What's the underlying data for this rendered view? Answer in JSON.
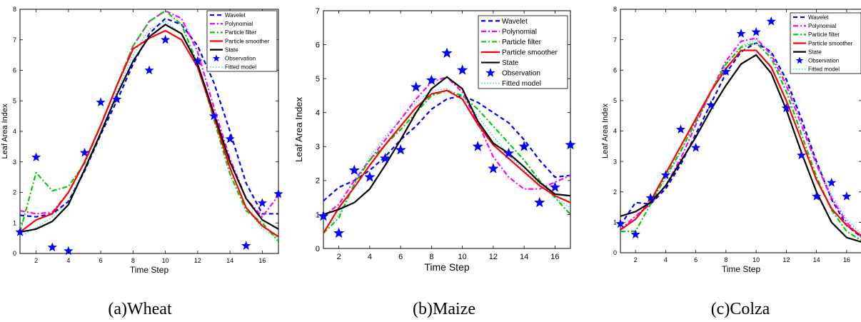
{
  "panels": [
    {
      "caption": "(a)Wheat",
      "chart_data": {
        "type": "line",
        "xlabel": "Time Step",
        "ylabel": "Leaf Area Index",
        "xlim": [
          1,
          17
        ],
        "ylim": [
          0,
          8
        ],
        "xticks": [
          2,
          4,
          6,
          8,
          10,
          12,
          14,
          16
        ],
        "yticks": [
          0,
          1,
          2,
          3,
          4,
          5,
          6,
          7,
          8
        ],
        "x": [
          1,
          2,
          3,
          4,
          5,
          6,
          7,
          8,
          9,
          10,
          11,
          12,
          13,
          14,
          15,
          16,
          17
        ],
        "legend_position": "top-right",
        "grid": false,
        "series": [
          {
            "name": "Wavelet",
            "style": "dashed",
            "color": "#0000ff",
            "values": [
              1.25,
              1.2,
              1.3,
              1.7,
              2.7,
              3.9,
              5.0,
              6.2,
              7.2,
              7.7,
              7.5,
              6.8,
              5.6,
              4.0,
              2.3,
              1.3,
              1.3
            ]
          },
          {
            "name": "Polynomial",
            "style": "dashdot",
            "color": "#ff00ff",
            "values": [
              1.4,
              1.3,
              1.35,
              2.0,
              3.0,
              4.2,
              5.5,
              6.8,
              7.6,
              7.95,
              7.7,
              6.6,
              4.8,
              3.1,
              1.8,
              1.2,
              1.9
            ]
          },
          {
            "name": "Particle filter",
            "style": "dashdot",
            "color": "#00cc00",
            "values": [
              0.7,
              2.65,
              2.05,
              2.2,
              2.95,
              4.2,
              5.5,
              6.8,
              7.6,
              7.95,
              7.5,
              6.2,
              4.4,
              2.6,
              1.4,
              1.0,
              0.4
            ]
          },
          {
            "name": "Particle smoother",
            "style": "solid",
            "color": "#ff0000",
            "values": [
              0.7,
              1.1,
              1.3,
              2.0,
              3.0,
              4.2,
              5.5,
              6.7,
              7.05,
              7.3,
              7.0,
              6.1,
              4.5,
              2.8,
              1.5,
              0.9,
              0.55
            ]
          },
          {
            "name": "State",
            "style": "solid",
            "color": "#000000",
            "values": [
              0.7,
              0.8,
              1.05,
              1.6,
              2.75,
              3.95,
              5.2,
              6.3,
              7.1,
              7.5,
              7.2,
              6.2,
              4.6,
              3.0,
              1.8,
              1.1,
              0.8
            ]
          },
          {
            "name": "Observation",
            "style": "marker",
            "color": "#0000ff",
            "values": [
              0.7,
              3.15,
              0.2,
              0.08,
              3.3,
              4.95,
              5.05,
              null,
              6.0,
              7.0,
              null,
              6.3,
              4.5,
              3.75,
              0.25,
              1.65,
              1.95
            ]
          },
          {
            "name": "Fitted model",
            "style": "dotted",
            "color": "#00cccc",
            "values": [
              0.55,
              0.85,
              1.2,
              1.75,
              2.8,
              4.0,
              5.3,
              6.5,
              7.35,
              7.6,
              7.2,
              6.1,
              4.5,
              2.8,
              1.5,
              0.8,
              0.5
            ]
          }
        ]
      }
    },
    {
      "caption": "(b)Maize",
      "chart_data": {
        "type": "line",
        "xlabel": "Time Step",
        "ylabel": "Leaf Area Index",
        "xlim": [
          1,
          17
        ],
        "ylim": [
          0,
          7
        ],
        "xticks": [
          2,
          4,
          6,
          8,
          10,
          12,
          14,
          16
        ],
        "yticks": [
          0,
          1,
          2,
          3,
          4,
          5,
          6,
          7
        ],
        "x": [
          1,
          2,
          3,
          4,
          5,
          6,
          7,
          8,
          9,
          10,
          11,
          12,
          13,
          14,
          15,
          16,
          17
        ],
        "legend_position": "top-right",
        "grid": false,
        "series": [
          {
            "name": "Wavelet",
            "style": "dashed",
            "color": "#0000ff",
            "values": [
              1.4,
              1.8,
              2.0,
              2.3,
              2.7,
              3.2,
              3.6,
              4.1,
              4.4,
              4.5,
              4.3,
              4.0,
              3.7,
              3.2,
              2.6,
              2.1,
              2.15
            ]
          },
          {
            "name": "Polynomial",
            "style": "dashdot",
            "color": "#ff00ff",
            "values": [
              0.95,
              1.3,
              2.0,
              2.6,
              3.2,
              3.8,
              4.4,
              4.9,
              5.05,
              4.6,
              3.7,
              2.7,
              2.1,
              1.75,
              1.75,
              1.95,
              2.15
            ]
          },
          {
            "name": "Particle filter",
            "style": "dashdot",
            "color": "#00cc00",
            "values": [
              0.45,
              0.9,
              1.9,
              2.6,
              3.05,
              3.5,
              4.0,
              4.5,
              4.65,
              4.5,
              4.1,
              3.6,
              3.1,
              2.6,
              2.0,
              1.5,
              1.0
            ]
          },
          {
            "name": "Particle smoother",
            "style": "solid",
            "color": "#ff0000",
            "values": [
              0.45,
              1.2,
              1.8,
              2.45,
              3.05,
              3.6,
              4.15,
              4.55,
              4.65,
              4.4,
              3.65,
              3.05,
              2.65,
              2.25,
              1.85,
              1.55,
              1.35
            ]
          },
          {
            "name": "State",
            "style": "solid",
            "color": "#000000",
            "values": [
              1.0,
              1.15,
              1.35,
              1.75,
              2.45,
              3.2,
              4.0,
              4.7,
              5.05,
              4.7,
              3.75,
              3.1,
              2.8,
              2.4,
              1.95,
              1.6,
              1.55
            ]
          },
          {
            "name": "Observation",
            "style": "marker",
            "color": "#0000ff",
            "values": [
              0.95,
              0.45,
              2.3,
              2.1,
              2.65,
              2.9,
              4.75,
              4.95,
              5.75,
              5.25,
              3.0,
              2.35,
              2.8,
              3.0,
              1.35,
              1.8,
              3.05
            ]
          },
          {
            "name": "Fitted model",
            "style": "dotted",
            "color": "#00cccc",
            "values": [
              0.5,
              1.0,
              1.9,
              2.7,
              3.3,
              3.8,
              4.3,
              4.65,
              4.7,
              4.45,
              3.9,
              3.3,
              2.75,
              2.3,
              1.9,
              1.5,
              1.2
            ]
          }
        ]
      }
    },
    {
      "caption": "(c)Colza",
      "chart_data": {
        "type": "line",
        "xlabel": "Time Step",
        "ylabel": "Leaf Area Index",
        "xlim": [
          1,
          17
        ],
        "ylim": [
          0,
          8
        ],
        "xticks": [
          2,
          4,
          6,
          8,
          10,
          12,
          14,
          16
        ],
        "yticks": [
          0,
          1,
          2,
          3,
          4,
          5,
          6,
          7,
          8
        ],
        "x": [
          1,
          2,
          3,
          4,
          5,
          6,
          7,
          8,
          9,
          10,
          11,
          12,
          13,
          14,
          15,
          16,
          17
        ],
        "legend_position": "top-right",
        "grid": false,
        "series": [
          {
            "name": "Wavelet",
            "style": "dashed",
            "color": "#0000ff",
            "values": [
              0.9,
              1.65,
              1.6,
              2.1,
              2.9,
              3.9,
              4.9,
              5.9,
              6.6,
              6.9,
              6.6,
              5.7,
              4.4,
              3.0,
              1.75,
              0.9,
              0.5
            ]
          },
          {
            "name": "Polynomial",
            "style": "dashdot",
            "color": "#ff00ff",
            "values": [
              0.75,
              1.2,
              1.6,
              2.2,
              3.1,
              4.2,
              5.3,
              6.3,
              6.95,
              7.05,
              6.5,
              5.5,
              4.2,
              2.9,
              1.8,
              1.0,
              0.5
            ]
          },
          {
            "name": "Particle filter",
            "style": "dashdot",
            "color": "#00cc00",
            "values": [
              0.7,
              0.7,
              1.6,
              2.5,
              3.35,
              4.3,
              5.3,
              6.2,
              6.75,
              6.9,
              6.4,
              5.3,
              3.9,
              2.5,
              1.4,
              0.7,
              0.4
            ]
          },
          {
            "name": "Particle smoother",
            "style": "solid",
            "color": "#ff0000",
            "values": [
              0.75,
              1.1,
              1.7,
              2.6,
              3.5,
              4.4,
              5.3,
              6.05,
              6.65,
              6.65,
              6.1,
              5.0,
              3.7,
              2.4,
              1.45,
              0.9,
              0.55
            ]
          },
          {
            "name": "State",
            "style": "solid",
            "color": "#000000",
            "values": [
              1.2,
              1.35,
              1.65,
              2.2,
              3.0,
              3.8,
              4.7,
              5.5,
              6.2,
              6.5,
              5.9,
              4.7,
              3.3,
              2.0,
              1.0,
              0.5,
              0.35
            ]
          },
          {
            "name": "Observation",
            "style": "marker",
            "color": "#0000ff",
            "values": [
              0.95,
              0.6,
              1.8,
              2.55,
              4.05,
              3.45,
              4.85,
              5.95,
              7.2,
              7.25,
              7.6,
              4.75,
              3.2,
              1.85,
              2.3,
              1.85,
              null
            ]
          },
          {
            "name": "Fitted model",
            "style": "dotted",
            "color": "#00cccc",
            "values": [
              0.9,
              1.2,
              1.7,
              2.4,
              3.3,
              4.3,
              5.3,
              6.2,
              6.8,
              7.0,
              6.6,
              5.6,
              4.3,
              3.0,
              1.9,
              1.1,
              0.6
            ]
          }
        ]
      }
    }
  ]
}
